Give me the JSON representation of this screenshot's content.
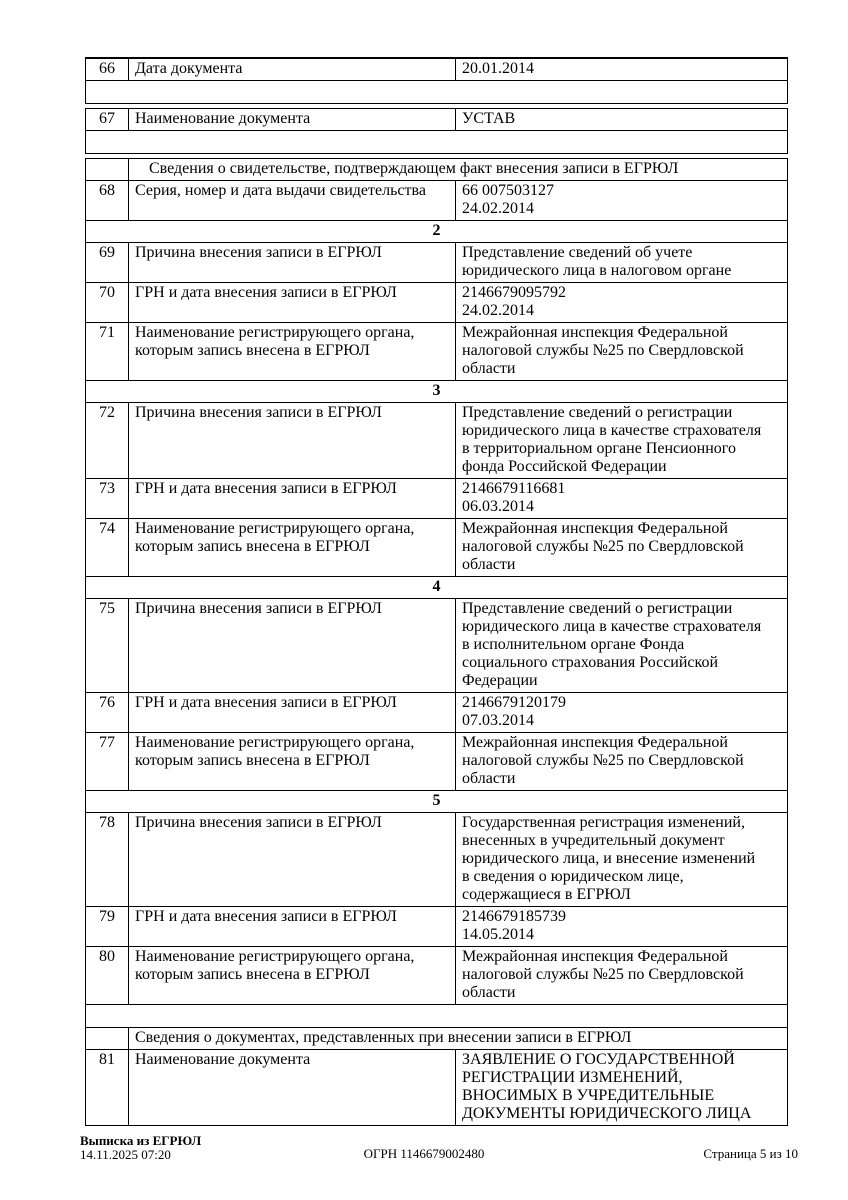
{
  "page": {
    "background_color": "#ffffff",
    "text_color": "#000000",
    "table_border_color": "#000000"
  },
  "table": {
    "blocks": [
      {
        "rows": [
          {
            "type": "field",
            "num": "66",
            "label": "Дата документа",
            "value": "20.01.2014"
          },
          {
            "type": "empty"
          }
        ]
      },
      {
        "rows": [
          {
            "type": "field",
            "num": "67",
            "label": "Наименование документа",
            "value": "УСТАВ"
          },
          {
            "type": "empty"
          }
        ]
      },
      {
        "rows": [
          {
            "type": "section_title",
            "indent": true,
            "title": "Сведения о свидетельстве, подтверждающем факт внесения записи в ЕГРЮЛ"
          },
          {
            "type": "field",
            "num": "68",
            "label": "Серия, номер и дата выдачи свидетельства",
            "value": "66 007503127\n24.02.2014"
          },
          {
            "type": "section_number",
            "number": "2"
          },
          {
            "type": "field",
            "num": "69",
            "label": "Причина внесения записи в ЕГРЮЛ",
            "value": "Представление сведений об учете\nюридического лица в налоговом органе"
          },
          {
            "type": "field",
            "num": "70",
            "label": "ГРН и дата внесения записи в ЕГРЮЛ",
            "value": "2146679095792\n24.02.2014"
          },
          {
            "type": "field",
            "num": "71",
            "label": "Наименование регистрирующего органа,\nкоторым запись внесена в ЕГРЮЛ",
            "value": "Межрайонная инспекция Федеральной\nналоговой службы №25 по Свердловской\nобласти"
          },
          {
            "type": "section_number",
            "number": "3"
          },
          {
            "type": "field",
            "num": "72",
            "label": "Причина внесения записи в ЕГРЮЛ",
            "value": "Представление сведений о регистрации\nюридического лица в качестве страхователя\nв территориальном органе Пенсионного\nфонда Российской Федерации"
          },
          {
            "type": "field",
            "num": "73",
            "label": "ГРН и дата внесения записи в ЕГРЮЛ",
            "value": "2146679116681\n06.03.2014"
          },
          {
            "type": "field",
            "num": "74",
            "label": "Наименование регистрирующего органа,\nкоторым запись внесена в ЕГРЮЛ",
            "value": "Межрайонная инспекция Федеральной\nналоговой службы №25 по Свердловской\nобласти"
          },
          {
            "type": "section_number",
            "number": "4"
          },
          {
            "type": "field",
            "num": "75",
            "label": "Причина внесения записи в ЕГРЮЛ",
            "value": "Представление сведений о регистрации\nюридического лица в качестве страхователя\nв исполнительном органе Фонда\nсоциального страхования Российской\nФедерации"
          },
          {
            "type": "field",
            "num": "76",
            "label": "ГРН и дата внесения записи в ЕГРЮЛ",
            "value": "2146679120179\n07.03.2014"
          },
          {
            "type": "field",
            "num": "77",
            "label": "Наименование регистрирующего органа,\nкоторым запись внесена в ЕГРЮЛ",
            "value": "Межрайонная инспекция Федеральной\nналоговой службы №25 по Свердловской\nобласти"
          },
          {
            "type": "section_number",
            "number": "5"
          },
          {
            "type": "field",
            "num": "78",
            "label": "Причина внесения записи в ЕГРЮЛ",
            "value": "Государственная регистрация изменений,\nвнесенных в учредительный документ\nюридического лица, и внесение изменений\nв сведения о юридическом лице,\nсодержащиеся в ЕГРЮЛ"
          },
          {
            "type": "field",
            "num": "79",
            "label": "ГРН и дата внесения записи в ЕГРЮЛ",
            "value": "2146679185739\n14.05.2014"
          },
          {
            "type": "field",
            "num": "80",
            "label": "Наименование регистрирующего органа,\nкоторым запись внесена в ЕГРЮЛ",
            "value": "Межрайонная инспекция Федеральной\nналоговой службы №25 по Свердловской\nобласти"
          },
          {
            "type": "empty"
          },
          {
            "type": "section_title",
            "indent": false,
            "title": "Сведения о документах, представленных при внесении записи в ЕГРЮЛ"
          },
          {
            "type": "field",
            "num": "81",
            "label": "Наименование документа",
            "value": "ЗАЯВЛЕНИЕ О ГОСУДАРСТВЕННОЙ\nРЕГИСТРАЦИИ ИЗМЕНЕНИЙ,\nВНОСИМЫХ В УЧРЕДИТЕЛЬНЫЕ\nДОКУМЕНТЫ  ЮРИДИЧЕСКОГО ЛИЦА"
          }
        ]
      }
    ]
  },
  "footer": {
    "doc_title": "Выписка из ЕГРЮЛ",
    "timestamp": "14.11.2025 07:20",
    "ogrn": "ОГРН 1146679002480",
    "page_indicator": "Страница 5 из 10"
  }
}
